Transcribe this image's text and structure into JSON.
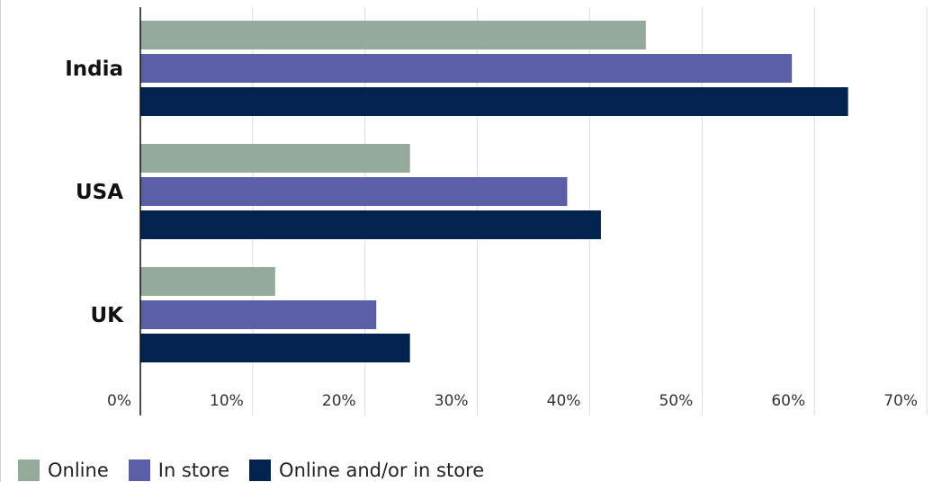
{
  "chart_data": {
    "type": "bar",
    "orientation": "horizontal",
    "categories": [
      "India",
      "USA",
      "UK"
    ],
    "series": [
      {
        "name": "Online",
        "color": "#95aa9a",
        "values": [
          45,
          24,
          12
        ]
      },
      {
        "name": "In store",
        "color": "#5b5fa7",
        "values": [
          58,
          38,
          21
        ]
      },
      {
        "name": "Online and/or in store",
        "color": "#02224f",
        "values": [
          63,
          41,
          24
        ]
      }
    ],
    "xlim": [
      0,
      70
    ],
    "xticks": [
      "0%",
      "10%",
      "20%",
      "30%",
      "40%",
      "50%",
      "60%",
      "70%"
    ],
    "grid": "vertical",
    "legend_position": "bottom-left"
  }
}
